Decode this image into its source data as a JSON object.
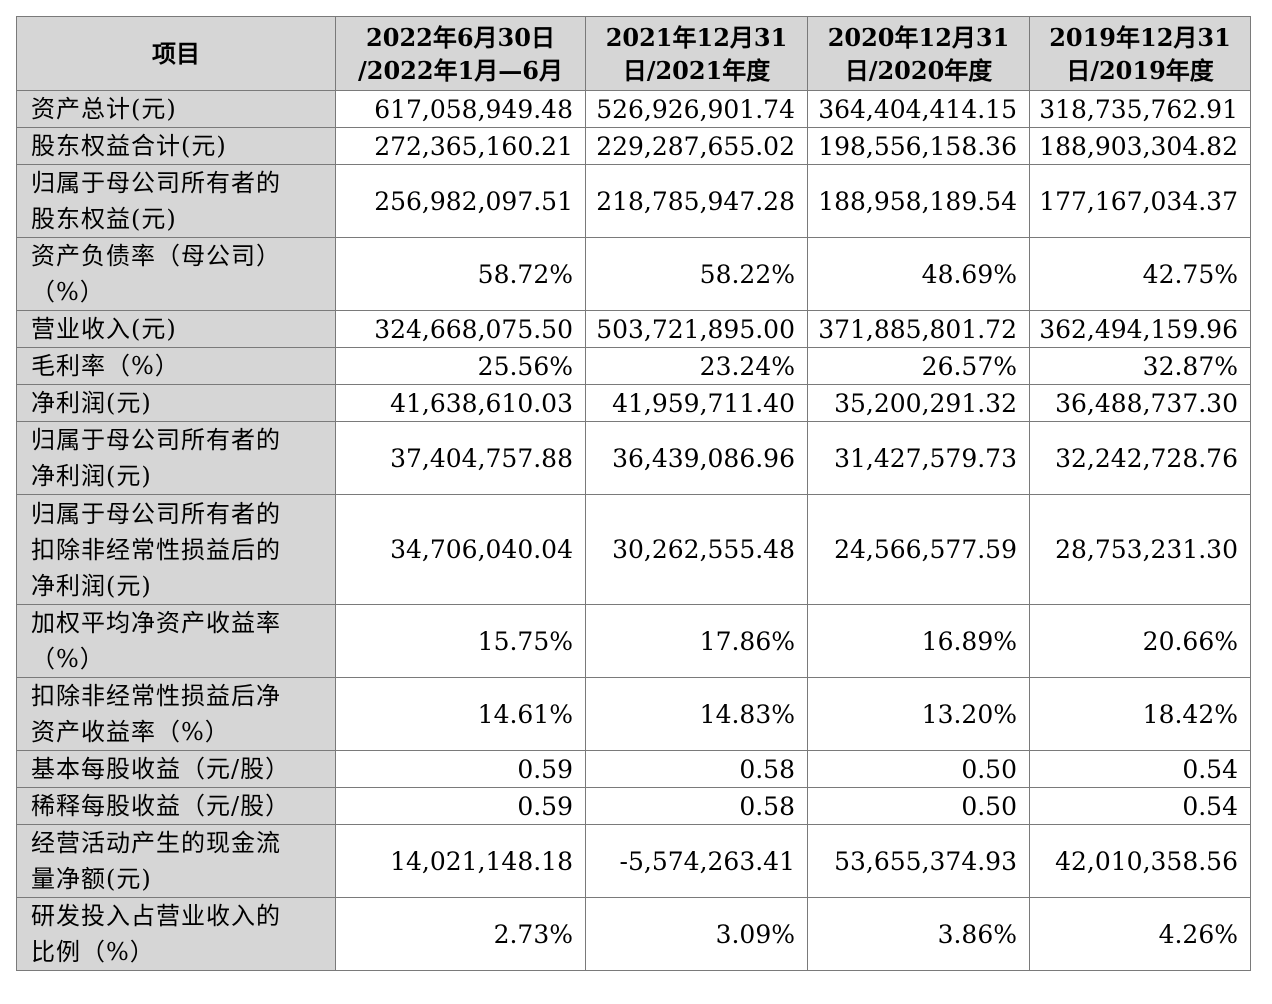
{
  "header": {
    "item": "项目",
    "periods": [
      {
        "line1": "2022年6月30日",
        "line2": "/2022年1月—6月"
      },
      {
        "line1": "2021年12月31",
        "line2": "日/2021年度"
      },
      {
        "line1": "2020年12月31",
        "line2": "日/2020年度"
      },
      {
        "line1": "2019年12月31",
        "line2": "日/2019年度"
      }
    ]
  },
  "rows": [
    {
      "label": "资产总计(元)",
      "values": [
        "617,058,949.48",
        "526,926,901.74",
        "364,404,414.15",
        "318,735,762.91"
      ]
    },
    {
      "label": "股东权益合计(元)",
      "values": [
        "272,365,160.21",
        "229,287,655.02",
        "198,556,158.36",
        "188,903,304.82"
      ]
    },
    {
      "label": "归属于母公司所有者的\n股东权益(元)",
      "values": [
        "256,982,097.51",
        "218,785,947.28",
        "188,958,189.54",
        "177,167,034.37"
      ]
    },
    {
      "label": "资产负债率（母公司）\n（%）",
      "values": [
        "58.72%",
        "58.22%",
        "48.69%",
        "42.75%"
      ]
    },
    {
      "label": "营业收入(元)",
      "values": [
        "324,668,075.50",
        "503,721,895.00",
        "371,885,801.72",
        "362,494,159.96"
      ]
    },
    {
      "label": "毛利率（%）",
      "values": [
        "25.56%",
        "23.24%",
        "26.57%",
        "32.87%"
      ]
    },
    {
      "label": "净利润(元)",
      "values": [
        "41,638,610.03",
        "41,959,711.40",
        "35,200,291.32",
        "36,488,737.30"
      ]
    },
    {
      "label": "归属于母公司所有者的\n净利润(元)",
      "values": [
        "37,404,757.88",
        "36,439,086.96",
        "31,427,579.73",
        "32,242,728.76"
      ]
    },
    {
      "label": "归属于母公司所有者的\n扣除非经常性损益后的\n净利润(元)",
      "values": [
        "34,706,040.04",
        "30,262,555.48",
        "24,566,577.59",
        "28,753,231.30"
      ]
    },
    {
      "label": "加权平均净资产收益率\n（%）",
      "values": [
        "15.75%",
        "17.86%",
        "16.89%",
        "20.66%"
      ]
    },
    {
      "label": "扣除非经常性损益后净\n资产收益率（%）",
      "values": [
        "14.61%",
        "14.83%",
        "13.20%",
        "18.42%"
      ]
    },
    {
      "label": "基本每股收益（元/股）",
      "values": [
        "0.59",
        "0.58",
        "0.50",
        "0.54"
      ]
    },
    {
      "label": "稀释每股收益（元/股）",
      "values": [
        "0.59",
        "0.58",
        "0.50",
        "0.54"
      ]
    },
    {
      "label": "经营活动产生的现金流\n量净额(元)",
      "values": [
        "14,021,148.18",
        "-5,574,263.41",
        "53,655,374.93",
        "42,010,358.56"
      ]
    },
    {
      "label": "研发投入占营业收入的\n比例（%）",
      "values": [
        "2.73%",
        "3.09%",
        "3.86%",
        "4.26%"
      ]
    }
  ]
}
